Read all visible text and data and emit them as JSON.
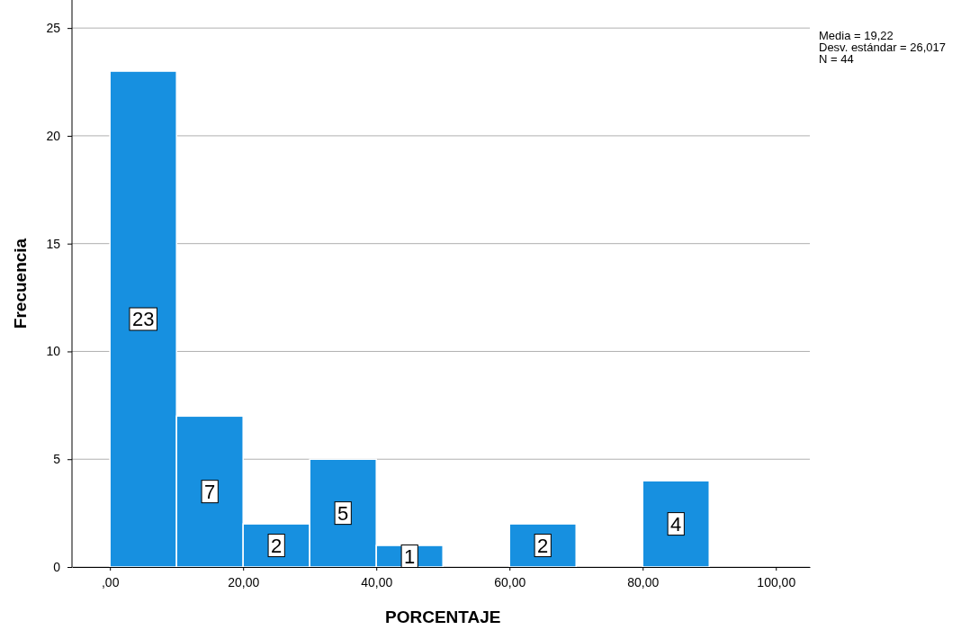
{
  "chart_data": {
    "type": "histogram",
    "xlabel": "PORCENTAJE",
    "ylabel": "Frecuencia",
    "bins": [
      0,
      10,
      20,
      30,
      40,
      50,
      60,
      70,
      80,
      90,
      100
    ],
    "values": [
      23,
      7,
      2,
      5,
      1,
      0,
      2,
      0,
      4,
      0
    ],
    "value_labels": [
      "23",
      "7",
      "2",
      "5",
      "1",
      null,
      "2",
      null,
      "4",
      null
    ],
    "color": "#1790e0",
    "xlim": [
      -5.7,
      105.1
    ],
    "xticks": [
      {
        "value": 0,
        "label": ",00"
      },
      {
        "value": 20,
        "label": "20,00"
      },
      {
        "value": 40,
        "label": "40,00"
      },
      {
        "value": 60,
        "label": "60,00"
      },
      {
        "value": 80,
        "label": "80,00"
      },
      {
        "value": 100,
        "label": "100,00"
      }
    ],
    "ylim": [
      0,
      26.3
    ],
    "yticks": [
      0,
      5,
      10,
      15,
      20,
      25
    ],
    "grid": "y",
    "annotations": [
      "Media = 19,22",
      "Desv. estándar = 26,017",
      "N = 44"
    ]
  }
}
